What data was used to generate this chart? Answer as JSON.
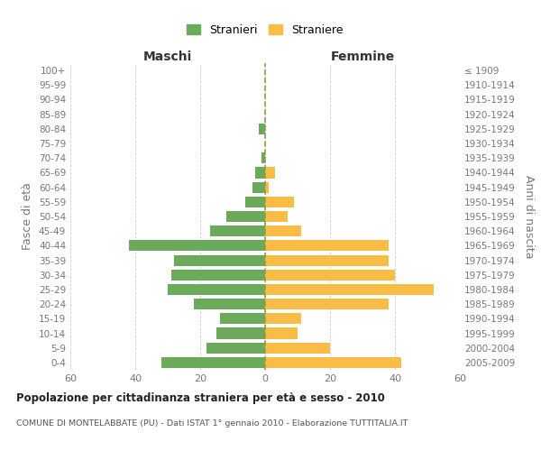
{
  "age_groups": [
    "100+",
    "95-99",
    "90-94",
    "85-89",
    "80-84",
    "75-79",
    "70-74",
    "65-69",
    "60-64",
    "55-59",
    "50-54",
    "45-49",
    "40-44",
    "35-39",
    "30-34",
    "25-29",
    "20-24",
    "15-19",
    "10-14",
    "5-9",
    "0-4"
  ],
  "birth_years": [
    "≤ 1909",
    "1910-1914",
    "1915-1919",
    "1920-1924",
    "1925-1929",
    "1930-1934",
    "1935-1939",
    "1940-1944",
    "1945-1949",
    "1950-1954",
    "1955-1959",
    "1960-1964",
    "1965-1969",
    "1970-1974",
    "1975-1979",
    "1980-1984",
    "1985-1989",
    "1990-1994",
    "1995-1999",
    "2000-2004",
    "2005-2009"
  ],
  "maschi": [
    0,
    0,
    0,
    0,
    2,
    0,
    1,
    3,
    4,
    6,
    12,
    17,
    42,
    28,
    29,
    30,
    22,
    14,
    15,
    18,
    32
  ],
  "femmine": [
    0,
    0,
    0,
    0,
    0,
    0,
    0,
    3,
    1,
    9,
    7,
    11,
    38,
    38,
    40,
    52,
    38,
    11,
    10,
    20,
    42
  ],
  "male_color": "#6aaa5a",
  "female_color": "#f9bc45",
  "dashed_line_color": "#999944",
  "background_color": "#ffffff",
  "grid_color": "#cccccc",
  "title": "Popolazione per cittadinanza straniera per età e sesso - 2010",
  "subtitle": "COMUNE DI MONTELABBATE (PU) - Dati ISTAT 1° gennaio 2010 - Elaborazione TUTTITALIA.IT",
  "xlabel_left": "Maschi",
  "xlabel_right": "Femmine",
  "ylabel_left": "Fasce di età",
  "ylabel_right": "Anni di nascita",
  "legend_male": "Stranieri",
  "legend_female": "Straniere",
  "xlim": 60,
  "label_color": "#777777"
}
